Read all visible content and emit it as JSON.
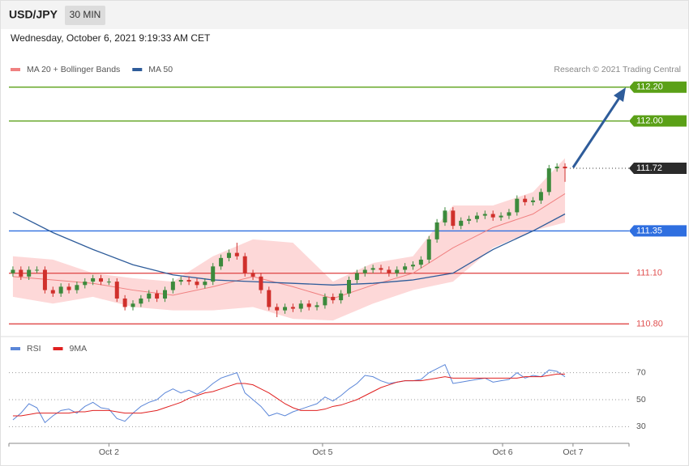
{
  "header": {
    "symbol": "USD/JPY",
    "interval": "30 MIN",
    "timestamp": "Wednesday, October 6, 2021 9:19:33 AM CET",
    "credit": "Research © 2021 Trading Central"
  },
  "chart_data": [
    {
      "type": "candlestick",
      "x": [
        0,
        1,
        2,
        3,
        4,
        5,
        6,
        7,
        8,
        9,
        10,
        11,
        12,
        13,
        14,
        15,
        16,
        17,
        18,
        19,
        20,
        21,
        22,
        23,
        24,
        25,
        26,
        27,
        28,
        29,
        30,
        31,
        32,
        33,
        34,
        35,
        36,
        37,
        38,
        39,
        40,
        41,
        42,
        43,
        44,
        45,
        46,
        47,
        48,
        49,
        50,
        51,
        52,
        53,
        54,
        55,
        56,
        57,
        58,
        59,
        60,
        61,
        62,
        63,
        64,
        65,
        66,
        67,
        68,
        69
      ],
      "open": [
        111.1,
        111.12,
        111.08,
        111.12,
        111.12,
        111.0,
        110.98,
        111.02,
        111.0,
        111.03,
        111.05,
        111.07,
        111.05,
        111.05,
        110.95,
        110.9,
        110.92,
        110.95,
        110.98,
        110.95,
        111.0,
        111.05,
        111.06,
        111.05,
        111.03,
        111.05,
        111.14,
        111.19,
        111.22,
        111.2,
        111.1,
        111.08,
        111.0,
        110.9,
        110.88,
        110.9,
        110.89,
        110.92,
        110.9,
        110.91,
        110.96,
        110.94,
        110.98,
        111.06,
        111.1,
        111.12,
        111.13,
        111.12,
        111.1,
        111.12,
        111.14,
        111.15,
        111.18,
        111.3,
        111.4,
        111.47,
        111.38,
        111.41,
        111.42,
        111.44,
        111.45,
        111.43,
        111.44,
        111.46,
        111.54,
        111.52,
        111.53,
        111.58,
        111.72,
        111.73
      ],
      "high": [
        111.14,
        111.14,
        111.14,
        111.14,
        111.14,
        111.02,
        111.04,
        111.04,
        111.05,
        111.07,
        111.09,
        111.09,
        111.07,
        111.07,
        110.97,
        110.94,
        110.97,
        111.0,
        111.0,
        111.02,
        111.07,
        111.08,
        111.08,
        111.07,
        111.07,
        111.16,
        111.21,
        111.24,
        111.28,
        111.22,
        111.12,
        111.1,
        111.02,
        110.92,
        110.92,
        110.92,
        110.94,
        110.94,
        110.93,
        110.98,
        110.98,
        111.0,
        111.08,
        111.12,
        111.14,
        111.15,
        111.15,
        111.14,
        111.14,
        111.16,
        111.17,
        111.2,
        111.32,
        111.42,
        111.49,
        111.49,
        111.43,
        111.44,
        111.46,
        111.47,
        111.47,
        111.46,
        111.48,
        111.56,
        111.56,
        111.55,
        111.6,
        111.74,
        111.75,
        111.75
      ],
      "low": [
        111.08,
        111.06,
        111.06,
        111.1,
        110.98,
        110.96,
        110.96,
        110.98,
        110.98,
        111.01,
        111.03,
        111.03,
        111.03,
        110.93,
        110.88,
        110.88,
        110.9,
        110.93,
        110.93,
        110.93,
        110.98,
        111.03,
        111.03,
        111.01,
        111.01,
        111.03,
        111.12,
        111.17,
        111.18,
        111.08,
        111.06,
        110.98,
        110.88,
        110.84,
        110.86,
        110.87,
        110.87,
        110.88,
        110.88,
        110.89,
        110.92,
        110.92,
        110.96,
        111.04,
        111.08,
        111.1,
        111.1,
        111.08,
        111.08,
        111.1,
        111.12,
        111.13,
        111.16,
        111.28,
        111.38,
        111.36,
        111.36,
        111.39,
        111.4,
        111.42,
        111.41,
        111.41,
        111.42,
        111.44,
        111.5,
        111.5,
        111.51,
        111.56,
        111.7,
        111.64
      ],
      "close": [
        111.12,
        111.08,
        111.12,
        111.12,
        111.0,
        110.98,
        111.02,
        111.0,
        111.03,
        111.05,
        111.07,
        111.05,
        111.05,
        110.95,
        110.9,
        110.92,
        110.95,
        110.98,
        110.95,
        111.0,
        111.05,
        111.06,
        111.05,
        111.03,
        111.05,
        111.14,
        111.19,
        111.22,
        111.2,
        111.1,
        111.08,
        111.0,
        110.9,
        110.88,
        110.9,
        110.89,
        110.92,
        110.9,
        110.91,
        110.96,
        110.94,
        110.98,
        111.06,
        111.1,
        111.12,
        111.13,
        111.12,
        111.1,
        111.12,
        111.14,
        111.15,
        111.18,
        111.3,
        111.4,
        111.47,
        111.38,
        111.41,
        111.42,
        111.44,
        111.45,
        111.43,
        111.44,
        111.46,
        111.54,
        111.52,
        111.53,
        111.58,
        111.72,
        111.73,
        111.72
      ],
      "up_color": "#3c8a3c",
      "down_color": "#d0302c",
      "overlays": [
        {
          "name": "MA 20 + Bollinger Bands",
          "color": "#f08080",
          "band_color": "#fdd8d8",
          "x": [
            0,
            5,
            10,
            15,
            20,
            25,
            30,
            35,
            40,
            45,
            50,
            55,
            60,
            65,
            69
          ],
          "values": [
            111.08,
            111.06,
            111.04,
            111.0,
            110.97,
            111.02,
            111.08,
            111.02,
            110.95,
            111.03,
            111.1,
            111.25,
            111.37,
            111.45,
            111.57
          ],
          "upper": [
            111.2,
            111.18,
            111.1,
            111.07,
            111.05,
            111.2,
            111.3,
            111.28,
            111.05,
            111.16,
            111.2,
            111.5,
            111.5,
            111.58,
            111.78
          ],
          "lower": [
            110.96,
            110.92,
            110.96,
            110.9,
            110.88,
            110.88,
            110.9,
            110.83,
            110.82,
            110.92,
            111.0,
            111.05,
            111.25,
            111.35,
            111.4
          ]
        },
        {
          "name": "MA 50",
          "color": "#2e5c9a",
          "x": [
            0,
            5,
            10,
            15,
            20,
            25,
            30,
            35,
            40,
            45,
            50,
            55,
            60,
            65,
            69
          ],
          "values": [
            111.46,
            111.34,
            111.24,
            111.15,
            111.09,
            111.06,
            111.05,
            111.04,
            111.03,
            111.04,
            111.06,
            111.1,
            111.24,
            111.35,
            111.45
          ]
        }
      ],
      "levels": [
        {
          "value": 112.2,
          "label": "112.20",
          "color": "#5aa017",
          "line": "solid",
          "label_style": "tag"
        },
        {
          "value": 112.0,
          "label": "112.00",
          "color": "#5aa017",
          "line": "solid",
          "label_style": "tag"
        },
        {
          "value": 111.72,
          "label": "111.72",
          "color": "#2b2b2b",
          "line": "dotted",
          "label_style": "tag"
        },
        {
          "value": 111.35,
          "label": "111.35",
          "color": "#2f6fe0",
          "line": "solid",
          "label_style": "tag"
        },
        {
          "value": 111.1,
          "label": "111.10",
          "color": "#e05050",
          "line": "solid",
          "label_style": "text"
        },
        {
          "value": 110.8,
          "label": "110.80",
          "color": "#e05050",
          "line": "solid",
          "label_style": "text"
        }
      ],
      "xlim": [
        -0.5,
        77
      ],
      "ylim": [
        110.73,
        112.39
      ]
    },
    {
      "type": "line",
      "x": [
        0,
        1,
        2,
        3,
        4,
        5,
        6,
        7,
        8,
        9,
        10,
        11,
        12,
        13,
        14,
        15,
        16,
        17,
        18,
        19,
        20,
        21,
        22,
        23,
        24,
        25,
        26,
        27,
        28,
        29,
        30,
        31,
        32,
        33,
        34,
        35,
        36,
        37,
        38,
        39,
        40,
        41,
        42,
        43,
        44,
        45,
        46,
        47,
        48,
        49,
        50,
        51,
        52,
        53,
        54,
        55,
        56,
        57,
        58,
        59,
        60,
        61,
        62,
        63,
        64,
        65,
        66,
        67,
        68,
        69
      ],
      "series": [
        {
          "name": "RSI",
          "color": "#5b86d8",
          "values": [
            35,
            40,
            47,
            44,
            33,
            38,
            42,
            43,
            40,
            45,
            48,
            44,
            43,
            36,
            34,
            40,
            45,
            48,
            50,
            55,
            58,
            55,
            57,
            54,
            57,
            62,
            66,
            68,
            70,
            55,
            50,
            45,
            38,
            40,
            38,
            41,
            43,
            45,
            47,
            52,
            49,
            53,
            58,
            62,
            68,
            67,
            64,
            62,
            63,
            64,
            64,
            65,
            70,
            73,
            76,
            62,
            63,
            64,
            65,
            66,
            63,
            64,
            65,
            70,
            66,
            68,
            67,
            72,
            71,
            67
          ]
        },
        {
          "name": "9MA",
          "color": "#e02020",
          "values": [
            38,
            38,
            39,
            40,
            40,
            40,
            40,
            40,
            41,
            41,
            42,
            42,
            42,
            41,
            40,
            40,
            40,
            41,
            42,
            44,
            46,
            48,
            51,
            53,
            55,
            56,
            58,
            60,
            62,
            62,
            61,
            58,
            55,
            51,
            47,
            44,
            42,
            42,
            42,
            43,
            45,
            46,
            48,
            50,
            53,
            56,
            59,
            61,
            63,
            64,
            64,
            64,
            65,
            66,
            67,
            66,
            66,
            66,
            66,
            66,
            66,
            66,
            66,
            66,
            67,
            67,
            67,
            68,
            69,
            69
          ]
        }
      ],
      "xlim": [
        -0.5,
        77
      ],
      "ylim": [
        17,
        80
      ],
      "yticks": [
        30,
        50,
        70
      ],
      "xticks": [
        {
          "value": 12,
          "label": "Oct 2"
        },
        {
          "value": 38.7,
          "label": "Oct 5"
        },
        {
          "value": 61.2,
          "label": "Oct 6"
        },
        {
          "value": 70,
          "label": "Oct 7"
        }
      ]
    }
  ]
}
